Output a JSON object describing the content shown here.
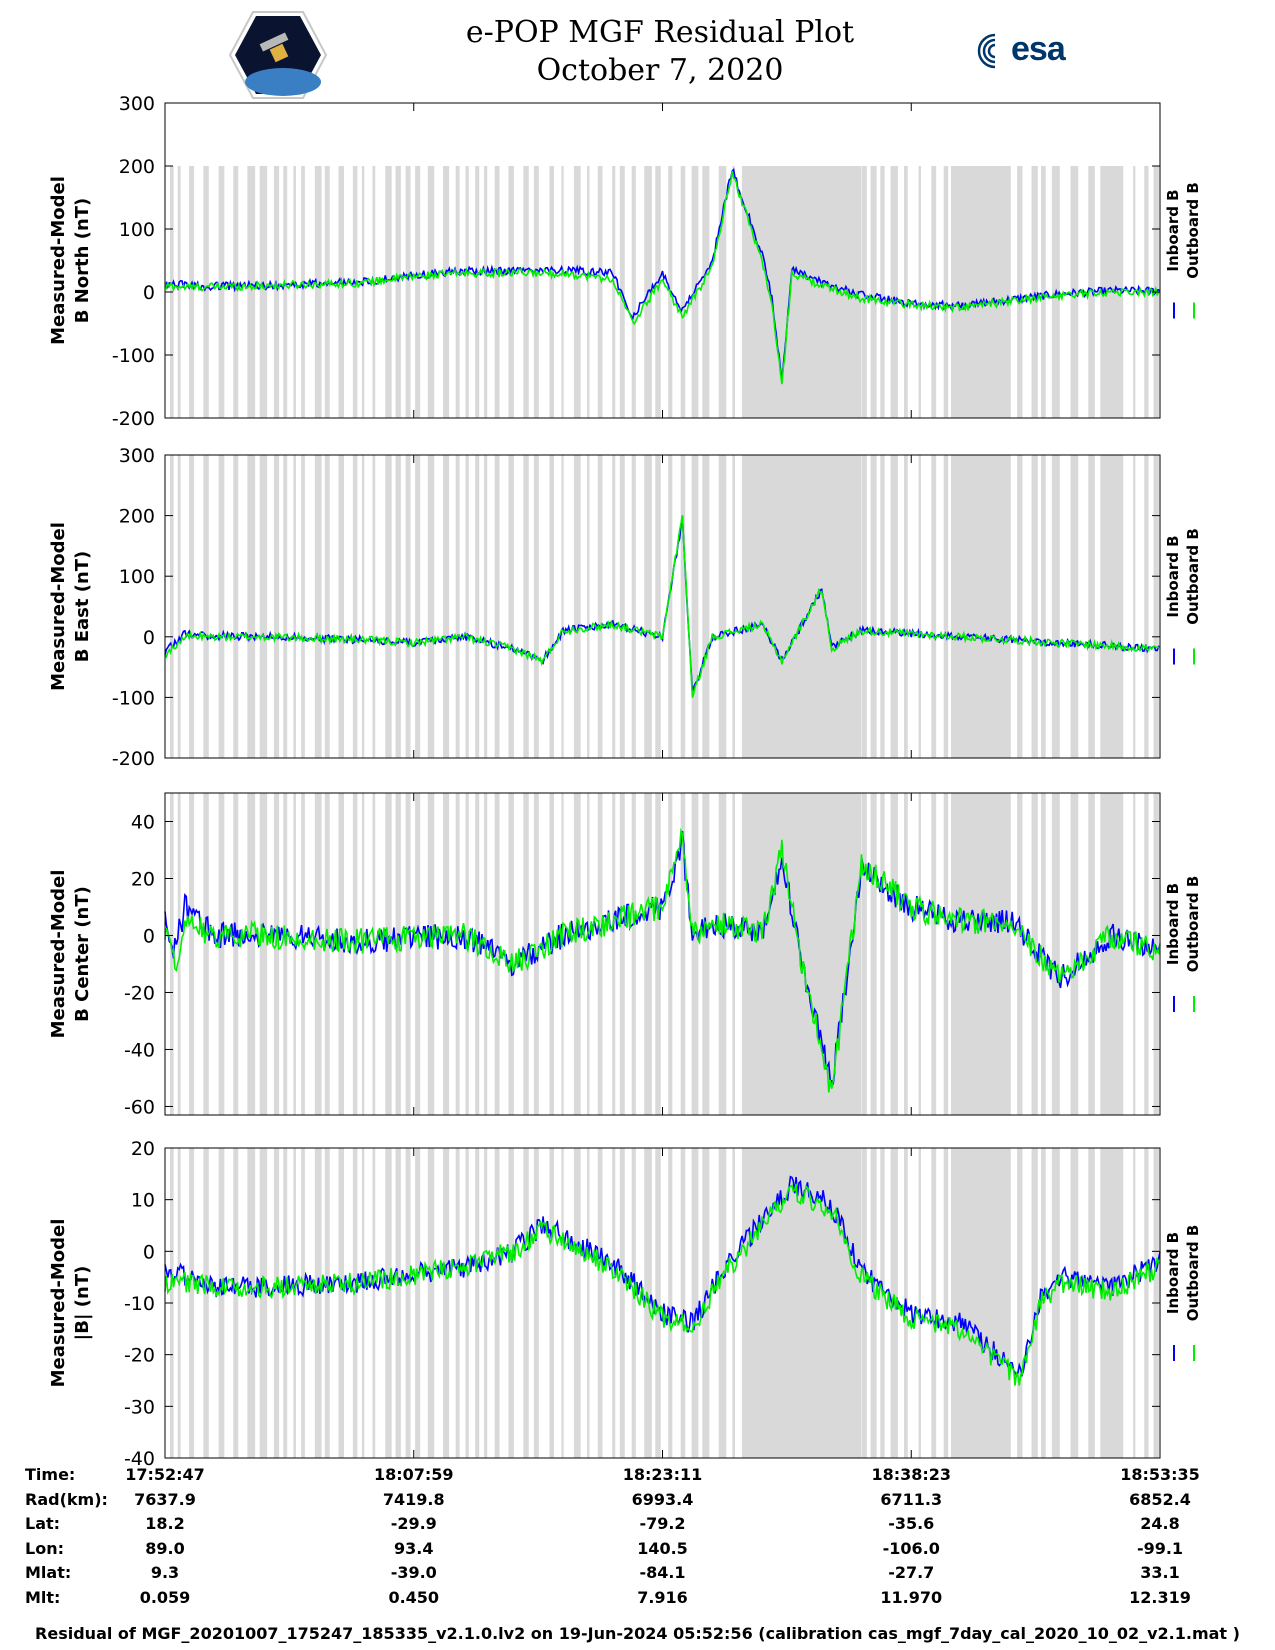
{
  "title": {
    "line1": "e-POP MGF Residual Plot",
    "line2": "October 7, 2020"
  },
  "logos": {
    "left": "cassiope-mission-logo",
    "right_text": "esa",
    "right_color": "#00376b"
  },
  "colors": {
    "inboard": "#0000ff",
    "outboard": "#00ee00",
    "shading": "#d9d9d9"
  },
  "chart_data": [
    {
      "type": "line",
      "ylabel_line1": "Measured-Model",
      "ylabel_line2": "B North (nT)",
      "ylim": [
        -200,
        300
      ],
      "yticks": [
        300,
        200,
        100,
        0,
        -100,
        -200
      ],
      "shade_range": [
        -200,
        200
      ],
      "legend": [
        "Inboard B",
        "Outboard B"
      ],
      "x": [
        0,
        0.02,
        0.04,
        0.1,
        0.2,
        0.25,
        0.3,
        0.35,
        0.4,
        0.45,
        0.47,
        0.5,
        0.52,
        0.55,
        0.57,
        0.6,
        0.61,
        0.62,
        0.63,
        0.66,
        0.7,
        0.75,
        0.8,
        0.85,
        0.9,
        0.95,
        1
      ],
      "series": [
        {
          "values": [
            10,
            8,
            8,
            10,
            15,
            25,
            30,
            30,
            30,
            20,
            -50,
            20,
            -40,
            40,
            190,
            50,
            -20,
            -150,
            30,
            10,
            -10,
            -20,
            -25,
            -15,
            -5,
            0,
            0
          ]
        },
        {
          "values": [
            10,
            12,
            9,
            10,
            16,
            27,
            33,
            34,
            35,
            30,
            -40,
            30,
            -30,
            50,
            195,
            60,
            -10,
            -140,
            35,
            15,
            -5,
            -18,
            -22,
            -12,
            -3,
            2,
            2
          ]
        }
      ]
    },
    {
      "type": "line",
      "ylabel_line1": "Measured-Model",
      "ylabel_line2": "B East (nT)",
      "ylim": [
        -200,
        300
      ],
      "yticks": [
        300,
        200,
        100,
        0,
        -100,
        -200
      ],
      "shade_range": [
        -200,
        300
      ],
      "legend": [
        "Inboard B",
        "Outboard B"
      ],
      "x": [
        0,
        0.02,
        0.04,
        0.1,
        0.2,
        0.25,
        0.3,
        0.35,
        0.38,
        0.4,
        0.45,
        0.5,
        0.52,
        0.53,
        0.55,
        0.6,
        0.62,
        0.66,
        0.67,
        0.7,
        0.75,
        0.8,
        0.85,
        0.9,
        0.95,
        1
      ],
      "series": [
        {
          "values": [
            -30,
            0,
            0,
            0,
            -5,
            -10,
            0,
            -20,
            -40,
            10,
            20,
            0,
            200,
            -100,
            0,
            20,
            -40,
            80,
            -20,
            10,
            5,
            0,
            -5,
            -10,
            -15,
            -20
          ]
        },
        {
          "values": [
            -25,
            5,
            2,
            0,
            -5,
            -10,
            0,
            -20,
            -38,
            10,
            20,
            0,
            195,
            -95,
            0,
            20,
            -38,
            78,
            -18,
            10,
            5,
            0,
            -5,
            -10,
            -15,
            -20
          ]
        }
      ]
    },
    {
      "type": "line",
      "ylabel_line1": "Measured-Model",
      "ylabel_line2": "B Center (nT)",
      "ylim": [
        -63,
        50
      ],
      "yticks": [
        40,
        20,
        0,
        -20,
        -40,
        -60
      ],
      "shade_range": [
        -63,
        50
      ],
      "legend": [
        "Inboard B",
        "Outboard B"
      ],
      "x": [
        0,
        0.01,
        0.02,
        0.05,
        0.1,
        0.2,
        0.3,
        0.35,
        0.4,
        0.45,
        0.5,
        0.52,
        0.53,
        0.55,
        0.6,
        0.62,
        0.64,
        0.66,
        0.67,
        0.7,
        0.75,
        0.8,
        0.85,
        0.9,
        0.95,
        1
      ],
      "series": [
        {
          "values": [
            0,
            -10,
            5,
            0,
            0,
            -2,
            0,
            -10,
            0,
            5,
            10,
            35,
            0,
            5,
            0,
            30,
            -10,
            -40,
            -55,
            25,
            10,
            5,
            5,
            -15,
            0,
            -5
          ]
        },
        {
          "values": [
            5,
            -5,
            10,
            0,
            0,
            -2,
            0,
            -10,
            0,
            5,
            10,
            33,
            0,
            5,
            0,
            28,
            -10,
            -38,
            -53,
            23,
            10,
            5,
            5,
            -15,
            0,
            -5
          ]
        }
      ]
    },
    {
      "type": "line",
      "ylabel_line1": "Measured-Model",
      "ylabel_line2": "|B| (nT)",
      "ylim": [
        -40,
        20
      ],
      "yticks": [
        20,
        10,
        0,
        -10,
        -20,
        -30,
        -40
      ],
      "shade_range": [
        -40,
        20
      ],
      "legend": [
        "Inboard B",
        "Outboard B"
      ],
      "x": [
        0,
        0.02,
        0.05,
        0.1,
        0.2,
        0.3,
        0.35,
        0.38,
        0.42,
        0.46,
        0.5,
        0.53,
        0.56,
        0.6,
        0.63,
        0.67,
        0.7,
        0.75,
        0.8,
        0.83,
        0.86,
        0.88,
        0.9,
        0.95,
        1
      ],
      "series": [
        {
          "values": [
            -6,
            -6,
            -7,
            -7,
            -6,
            -3,
            0,
            4,
            0,
            -5,
            -13,
            -15,
            -5,
            5,
            12,
            8,
            -5,
            -13,
            -15,
            -20,
            -25,
            -10,
            -6,
            -8,
            -3
          ]
        },
        {
          "values": [
            -3,
            -5,
            -7,
            -7,
            -6,
            -3,
            0,
            5,
            1,
            -4,
            -12,
            -14,
            -4,
            6,
            13,
            9,
            -4,
            -12,
            -14,
            -19,
            -24,
            -9,
            -5,
            -7,
            -2
          ]
        }
      ]
    }
  ],
  "info": {
    "labels": [
      "Time:",
      "Rad(km):",
      "Lat:",
      "Lon:",
      "Mlat:",
      "Mlt:"
    ],
    "columns": [
      [
        "17:52:47",
        "7637.9",
        "18.2",
        "89.0",
        "9.3",
        "0.059"
      ],
      [
        "18:07:59",
        "7419.8",
        "-29.9",
        "93.4",
        "-39.0",
        "0.450"
      ],
      [
        "18:23:11",
        "6993.4",
        "-79.2",
        "140.5",
        "-84.1",
        "7.916"
      ],
      [
        "18:38:23",
        "6711.3",
        "-35.6",
        "-106.0",
        "-27.7",
        "11.970"
      ],
      [
        "18:53:35",
        "6852.4",
        "24.8",
        "-99.1",
        "33.1",
        "12.319"
      ]
    ]
  },
  "footer": "Residual of MGF_20201007_175247_185335_v2.1.0.lv2 on 19-Jun-2024 05:52:56 (calibration cas_mgf_7day_cal_2020_10_02_v2.1.mat )"
}
